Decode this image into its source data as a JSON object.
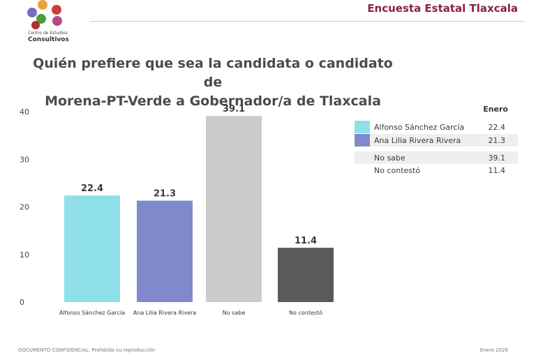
{
  "header": {
    "title": "Encuesta Estatal Tlaxcala"
  },
  "logo": {
    "line1": "Centro de Estudios",
    "line2": "Consultivos"
  },
  "chart_data": {
    "type": "bar",
    "title_lines": [
      "Quién prefiere que sea la candidata o candidato de",
      "Morena-PT-Verde a Gobernador/a de Tlaxcala"
    ],
    "categories": [
      "Alfonso Sánchez García",
      "Ana Lilia Rivera Rivera",
      "No sabe",
      "No contestó"
    ],
    "values": [
      22.4,
      21.3,
      39.1,
      11.4
    ],
    "value_labels": [
      "22.4",
      "21.3",
      "39.1",
      "11.4"
    ],
    "colors": [
      "#8fe0ea",
      "#7f89cc",
      "#cccccc",
      "#5a5a5a"
    ],
    "ylim": [
      0,
      40
    ],
    "yticks": [
      "0",
      "10",
      "20",
      "30",
      "40"
    ],
    "xlabel": "",
    "ylabel": "",
    "grid": false
  },
  "legend": {
    "header": "Enero",
    "rows": [
      {
        "label": "Alfonso Sánchez García",
        "value": "22.4",
        "color": "#8fe0ea"
      },
      {
        "label": "Ana Lilia Rivera Rivera",
        "value": "21.3",
        "color": "#7f89cc"
      },
      {
        "label": "No sabe",
        "value": "39.1"
      },
      {
        "label": "No contestó",
        "value": "11.4"
      }
    ]
  },
  "footer": {
    "left": "DOCUMENTO CONFIDENCIAL. Prohibido su reproducción",
    "right": "Enero 2026"
  }
}
